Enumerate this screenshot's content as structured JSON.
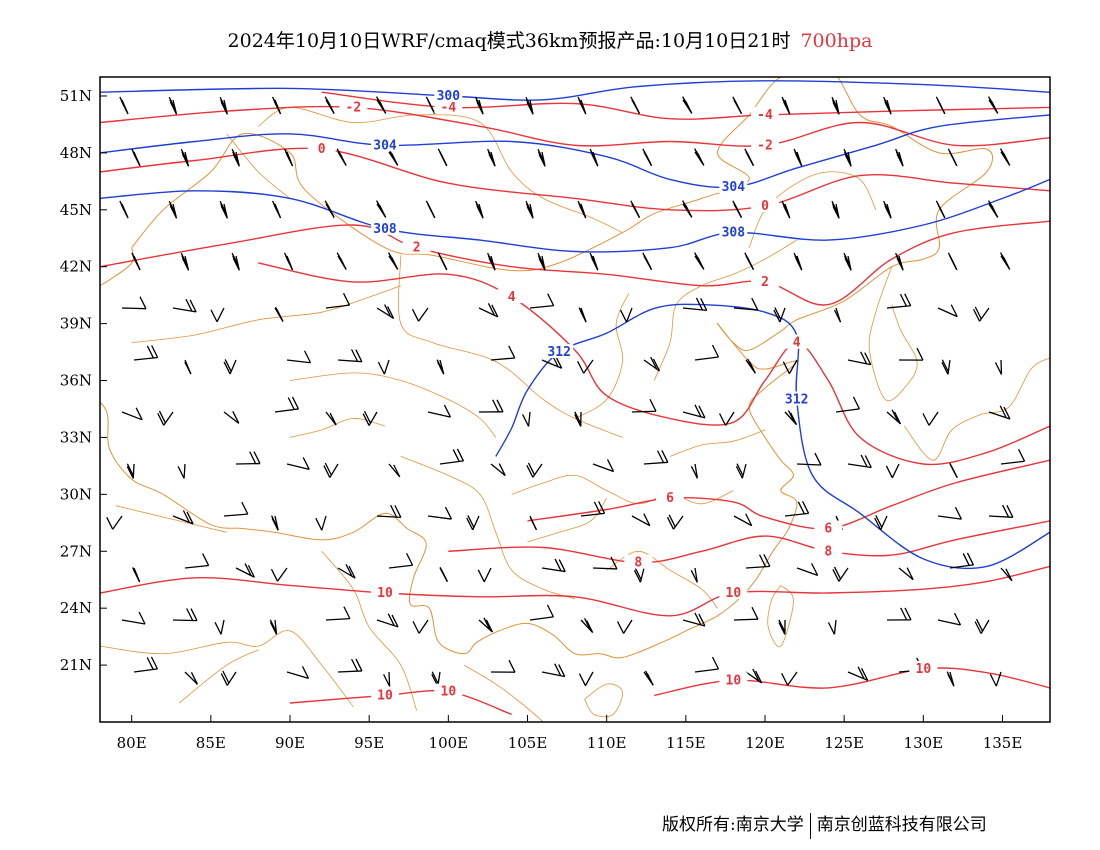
{
  "header": {
    "title": "2024年10月10日WRF/cmaq模式36km预报产品:10月10日21时",
    "level": "700hpa",
    "level_color": "#e8343a"
  },
  "map": {
    "lon_range": [
      78,
      138
    ],
    "lat_range": [
      18,
      52
    ],
    "lon_ticks": [
      {
        "value": 80,
        "label": "80E"
      },
      {
        "value": 85,
        "label": "85E"
      },
      {
        "value": 90,
        "label": "90E"
      },
      {
        "value": 95,
        "label": "95E"
      },
      {
        "value": 100,
        "label": "100E"
      },
      {
        "value": 105,
        "label": "105E"
      },
      {
        "value": 110,
        "label": "110E"
      },
      {
        "value": 115,
        "label": "115E"
      },
      {
        "value": 120,
        "label": "120E"
      },
      {
        "value": 125,
        "label": "125E"
      },
      {
        "value": 130,
        "label": "130E"
      },
      {
        "value": 135,
        "label": "135E"
      }
    ],
    "lat_ticks": [
      {
        "value": 51,
        "label": "51N"
      },
      {
        "value": 48,
        "label": "48N"
      },
      {
        "value": 45,
        "label": "45N"
      },
      {
        "value": 42,
        "label": "42N"
      },
      {
        "value": 39,
        "label": "39N"
      },
      {
        "value": 36,
        "label": "36N"
      },
      {
        "value": 33,
        "label": "33N"
      },
      {
        "value": 30,
        "label": "30N"
      },
      {
        "value": 27,
        "label": "27N"
      },
      {
        "value": 24,
        "label": "24N"
      },
      {
        "value": 21,
        "label": "21N"
      }
    ],
    "colors": {
      "geopotential": "#1f3fd6",
      "temperature": "#e8343a",
      "boundaries": "#e0943a",
      "wind_barbs": "#000000"
    },
    "geopotential_contours": [
      {
        "label": "300",
        "points": [
          [
            78,
            51.2
          ],
          [
            90,
            51.4
          ],
          [
            100,
            51.0
          ],
          [
            106,
            50.8
          ],
          [
            112,
            51.5
          ],
          [
            120,
            51.8
          ],
          [
            130,
            51.6
          ],
          [
            138,
            51.2
          ]
        ]
      },
      {
        "label": "304",
        "points": [
          [
            78,
            48.0
          ],
          [
            84,
            48.6
          ],
          [
            90,
            49.0
          ],
          [
            96,
            48.4
          ],
          [
            104,
            48.6
          ],
          [
            110,
            47.8
          ],
          [
            114,
            46.6
          ],
          [
            118,
            46.2
          ],
          [
            122,
            47.2
          ],
          [
            127,
            48.4
          ],
          [
            131,
            49.4
          ],
          [
            138,
            50.0
          ]
        ]
      },
      {
        "label": "308",
        "points": [
          [
            78,
            45.6
          ],
          [
            84,
            46.0
          ],
          [
            90,
            45.6
          ],
          [
            96,
            44.0
          ],
          [
            102,
            43.4
          ],
          [
            108,
            42.8
          ],
          [
            114,
            43.0
          ],
          [
            118,
            43.8
          ],
          [
            124,
            43.4
          ],
          [
            130,
            44.2
          ],
          [
            135,
            45.6
          ],
          [
            138,
            46.6
          ]
        ]
      },
      {
        "label": "312",
        "points": [
          [
            103,
            32.0
          ],
          [
            104,
            33.5
          ],
          [
            105,
            35.5
          ],
          [
            107,
            37.5
          ],
          [
            110,
            38.5
          ],
          [
            113,
            39.8
          ],
          [
            116,
            40.0
          ],
          [
            120,
            39.6
          ],
          [
            122,
            38.4
          ],
          [
            122,
            35.0
          ],
          [
            123,
            31.0
          ],
          [
            126,
            29.0
          ],
          [
            130,
            26.6
          ],
          [
            134,
            26.2
          ],
          [
            138,
            28.0
          ]
        ]
      }
    ],
    "temperature_contours": [
      {
        "label": "-4",
        "points": [
          [
            92,
            51.2
          ],
          [
            100,
            50.4
          ],
          [
            108,
            50.6
          ],
          [
            114,
            49.8
          ],
          [
            120,
            50.0
          ],
          [
            128,
            50.2
          ],
          [
            138,
            50.4
          ]
        ]
      },
      {
        "label": "-2",
        "points": [
          [
            78,
            49.6
          ],
          [
            86,
            50.2
          ],
          [
            94,
            50.4
          ],
          [
            102,
            49.4
          ],
          [
            108,
            48.4
          ],
          [
            114,
            48.6
          ],
          [
            120,
            48.4
          ],
          [
            126,
            49.6
          ],
          [
            132,
            48.4
          ],
          [
            138,
            48.8
          ]
        ]
      },
      {
        "label": "0",
        "points": [
          [
            78,
            47.0
          ],
          [
            84,
            47.6
          ],
          [
            92,
            48.2
          ],
          [
            100,
            46.4
          ],
          [
            108,
            45.6
          ],
          [
            114,
            45.0
          ],
          [
            120,
            45.2
          ],
          [
            126,
            46.8
          ],
          [
            132,
            46.4
          ],
          [
            138,
            46.0
          ]
        ]
      },
      {
        "label": "2",
        "points": [
          [
            78,
            42.0
          ],
          [
            86,
            43.2
          ],
          [
            94,
            44.2
          ],
          [
            98,
            43.0
          ],
          [
            104,
            42.0
          ],
          [
            110,
            41.6
          ],
          [
            116,
            41.0
          ],
          [
            120,
            41.2
          ],
          [
            124,
            40.0
          ],
          [
            128,
            42.4
          ],
          [
            132,
            43.8
          ],
          [
            138,
            44.4
          ]
        ]
      },
      {
        "label": "4",
        "points": [
          [
            88,
            42.2
          ],
          [
            94,
            41.2
          ],
          [
            100,
            41.6
          ],
          [
            104,
            40.4
          ],
          [
            108,
            37.6
          ],
          [
            110,
            35.2
          ],
          [
            114,
            34.0
          ],
          [
            118,
            33.8
          ],
          [
            120,
            36.0
          ],
          [
            122,
            38.0
          ],
          [
            124,
            36.0
          ],
          [
            126,
            33.0
          ],
          [
            130,
            31.6
          ],
          [
            134,
            32.2
          ],
          [
            138,
            33.6
          ]
        ]
      },
      {
        "label": "6",
        "points": [
          [
            105,
            28.6
          ],
          [
            110,
            29.2
          ],
          [
            114,
            29.8
          ],
          [
            118,
            29.6
          ],
          [
            120,
            28.8
          ],
          [
            124,
            28.2
          ],
          [
            128,
            29.4
          ],
          [
            132,
            30.6
          ],
          [
            138,
            31.8
          ]
        ]
      },
      {
        "label": "8",
        "points": [
          [
            100,
            27.0
          ],
          [
            106,
            27.2
          ],
          [
            112,
            26.4
          ],
          [
            116,
            27.0
          ],
          [
            120,
            27.8
          ],
          [
            124,
            27.0
          ],
          [
            128,
            26.8
          ],
          [
            132,
            27.6
          ],
          [
            138,
            28.6
          ]
        ]
      },
      {
        "label": "10",
        "points": [
          [
            78,
            24.8
          ],
          [
            84,
            25.6
          ],
          [
            90,
            25.2
          ],
          [
            96,
            24.8
          ],
          [
            102,
            24.6
          ],
          [
            108,
            24.6
          ],
          [
            114,
            23.6
          ],
          [
            118,
            24.8
          ],
          [
            124,
            24.8
          ],
          [
            130,
            25.0
          ],
          [
            134,
            25.4
          ],
          [
            138,
            26.2
          ]
        ]
      },
      {
        "label": "10",
        "points": [
          [
            90,
            19.0
          ],
          [
            96,
            19.4
          ],
          [
            100,
            19.6
          ],
          [
            104,
            18.4
          ]
        ]
      },
      {
        "label": "10",
        "points": [
          [
            113,
            19.4
          ],
          [
            118,
            20.2
          ],
          [
            124,
            19.8
          ],
          [
            130,
            20.8
          ],
          [
            134,
            20.6
          ],
          [
            138,
            19.8
          ]
        ]
      }
    ]
  },
  "footer": {
    "copyright": "版权所有:南京大学",
    "company": "南京创蓝科技有限公司"
  }
}
